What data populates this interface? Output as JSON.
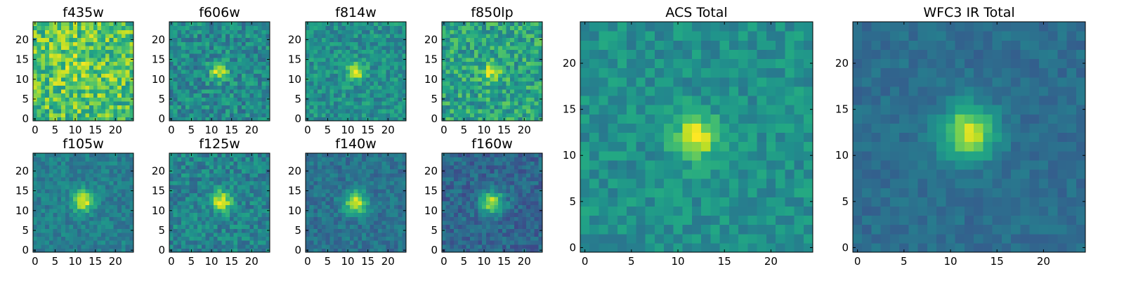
{
  "chart_data": [
    {
      "type": "heatmap",
      "title": "f435w",
      "grid_size": [
        25,
        25
      ],
      "xlim": [
        -0.5,
        24.5
      ],
      "ylim": [
        -0.5,
        24.5
      ],
      "xticks": [
        0,
        5,
        10,
        15,
        20
      ],
      "xticklabels": [
        "0",
        "5",
        "10",
        "15",
        "20"
      ],
      "yticks": [
        0,
        5,
        10,
        15,
        20
      ],
      "yticklabels": [
        "0",
        "5",
        "10",
        "15",
        "20"
      ],
      "colormap": "viridis",
      "peak_center": [
        11,
        14
      ],
      "peak_sigma": 6,
      "peak_amp": 0.08,
      "background_level": 0.7,
      "noise_amplitude": 0.45,
      "seed": 11
    },
    {
      "type": "heatmap",
      "title": "f606w",
      "grid_size": [
        25,
        25
      ],
      "xlim": [
        -0.5,
        24.5
      ],
      "ylim": [
        -0.5,
        24.5
      ],
      "xticks": [
        0,
        5,
        10,
        15,
        20
      ],
      "xticklabels": [
        "0",
        "5",
        "10",
        "15",
        "20"
      ],
      "yticks": [
        0,
        5,
        10,
        15,
        20
      ],
      "yticklabels": [
        "0",
        "5",
        "10",
        "15",
        "20"
      ],
      "colormap": "viridis",
      "peak_center": [
        12,
        12
      ],
      "peak_sigma": 1.6,
      "peak_amp": 0.45,
      "background_level": 0.48,
      "noise_amplitude": 0.32,
      "seed": 23
    },
    {
      "type": "heatmap",
      "title": "f814w",
      "grid_size": [
        25,
        25
      ],
      "xlim": [
        -0.5,
        24.5
      ],
      "ylim": [
        -0.5,
        24.5
      ],
      "xticks": [
        0,
        5,
        10,
        15,
        20
      ],
      "xticklabels": [
        "0",
        "5",
        "10",
        "15",
        "20"
      ],
      "yticks": [
        0,
        5,
        10,
        15,
        20
      ],
      "yticklabels": [
        "0",
        "5",
        "10",
        "15",
        "20"
      ],
      "colormap": "viridis",
      "peak_center": [
        12,
        12
      ],
      "peak_sigma": 1.5,
      "peak_amp": 0.48,
      "background_level": 0.5,
      "noise_amplitude": 0.28,
      "seed": 37
    },
    {
      "type": "heatmap",
      "title": "f850lp",
      "grid_size": [
        25,
        25
      ],
      "xlim": [
        -0.5,
        24.5
      ],
      "ylim": [
        -0.5,
        24.5
      ],
      "xticks": [
        0,
        5,
        10,
        15,
        20
      ],
      "xticklabels": [
        "0",
        "5",
        "10",
        "15",
        "20"
      ],
      "yticks": [
        0,
        5,
        10,
        15,
        20
      ],
      "yticklabels": [
        "0",
        "5",
        "10",
        "15",
        "20"
      ],
      "colormap": "viridis",
      "peak_center": [
        12,
        12
      ],
      "peak_sigma": 1.8,
      "peak_amp": 0.3,
      "background_level": 0.58,
      "noise_amplitude": 0.38,
      "seed": 41
    },
    {
      "type": "heatmap",
      "title": "f105w",
      "grid_size": [
        25,
        25
      ],
      "xlim": [
        -0.5,
        24.5
      ],
      "ylim": [
        -0.5,
        24.5
      ],
      "xticks": [
        0,
        5,
        10,
        15,
        20
      ],
      "xticklabels": [
        "0",
        "5",
        "10",
        "15",
        "20"
      ],
      "yticks": [
        0,
        5,
        10,
        15,
        20
      ],
      "yticklabels": [
        "0",
        "5",
        "10",
        "15",
        "20"
      ],
      "colormap": "viridis",
      "peak_center": [
        12,
        12.5
      ],
      "peak_sigma": 1.8,
      "peak_amp": 0.55,
      "background_level": 0.43,
      "noise_amplitude": 0.2,
      "seed": 53
    },
    {
      "type": "heatmap",
      "title": "f125w",
      "grid_size": [
        25,
        25
      ],
      "xlim": [
        -0.5,
        24.5
      ],
      "ylim": [
        -0.5,
        24.5
      ],
      "xticks": [
        0,
        5,
        10,
        15,
        20
      ],
      "xticklabels": [
        "0",
        "5",
        "10",
        "15",
        "20"
      ],
      "yticks": [
        0,
        5,
        10,
        15,
        20
      ],
      "yticklabels": [
        "0",
        "5",
        "10",
        "15",
        "20"
      ],
      "colormap": "viridis",
      "peak_center": [
        12.5,
        12.5
      ],
      "peak_sigma": 1.8,
      "peak_amp": 0.52,
      "background_level": 0.45,
      "noise_amplitude": 0.28,
      "seed": 67
    },
    {
      "type": "heatmap",
      "title": "f140w",
      "grid_size": [
        25,
        25
      ],
      "xlim": [
        -0.5,
        24.5
      ],
      "ylim": [
        -0.5,
        24.5
      ],
      "xticks": [
        0,
        5,
        10,
        15,
        20
      ],
      "xticklabels": [
        "0",
        "5",
        "10",
        "15",
        "20"
      ],
      "yticks": [
        0,
        5,
        10,
        15,
        20
      ],
      "yticklabels": [
        "0",
        "5",
        "10",
        "15",
        "20"
      ],
      "colormap": "viridis",
      "peak_center": [
        12,
        12
      ],
      "peak_sigma": 2.0,
      "peak_amp": 0.55,
      "background_level": 0.38,
      "noise_amplitude": 0.2,
      "seed": 79
    },
    {
      "type": "heatmap",
      "title": "f160w",
      "grid_size": [
        25,
        25
      ],
      "xlim": [
        -0.5,
        24.5
      ],
      "ylim": [
        -0.5,
        24.5
      ],
      "xticks": [
        0,
        5,
        10,
        15,
        20
      ],
      "xticklabels": [
        "0",
        "5",
        "10",
        "15",
        "20"
      ],
      "yticks": [
        0,
        5,
        10,
        15,
        20
      ],
      "yticklabels": [
        "0",
        "5",
        "10",
        "15",
        "20"
      ],
      "colormap": "viridis",
      "peak_center": [
        12,
        12
      ],
      "peak_sigma": 2.0,
      "peak_amp": 0.58,
      "background_level": 0.33,
      "noise_amplitude": 0.22,
      "seed": 83
    },
    {
      "type": "heatmap",
      "title": "ACS Total",
      "grid_size": [
        25,
        25
      ],
      "xlim": [
        -0.5,
        24.5
      ],
      "ylim": [
        -0.5,
        24.5
      ],
      "xticks": [
        0,
        5,
        10,
        15,
        20
      ],
      "xticklabels": [
        "0",
        "5",
        "10",
        "15",
        "20"
      ],
      "yticks": [
        0,
        5,
        10,
        15,
        20
      ],
      "yticklabels": [
        "0",
        "5",
        "10",
        "15",
        "20"
      ],
      "colormap": "viridis",
      "peak_center": [
        12,
        12
      ],
      "peak_sigma": 1.6,
      "peak_amp": 0.5,
      "background_level": 0.5,
      "noise_amplitude": 0.22,
      "seed": 97
    },
    {
      "type": "heatmap",
      "title": "WFC3 IR Total",
      "grid_size": [
        25,
        25
      ],
      "xlim": [
        -0.5,
        24.5
      ],
      "ylim": [
        -0.5,
        24.5
      ],
      "xticks": [
        0,
        5,
        10,
        15,
        20
      ],
      "xticklabels": [
        "0",
        "5",
        "10",
        "15",
        "20"
      ],
      "yticks": [
        0,
        5,
        10,
        15,
        20
      ],
      "yticklabels": [
        "0",
        "5",
        "10",
        "15",
        "20"
      ],
      "colormap": "viridis",
      "peak_center": [
        12,
        12.5
      ],
      "peak_sigma": 2.0,
      "peak_amp": 0.58,
      "background_level": 0.36,
      "noise_amplitude": 0.12,
      "seed": 101
    }
  ]
}
